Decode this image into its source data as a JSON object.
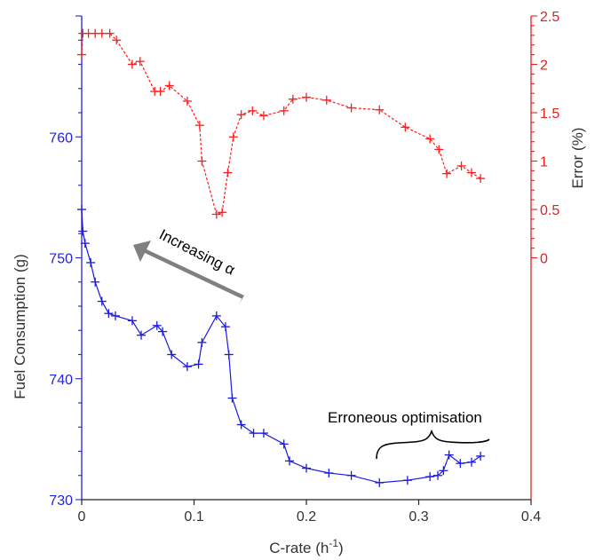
{
  "chart_data": {
    "type": "line",
    "xlabel": "C-rate (h",
    "xlabel_sup": "-1",
    "xlabel_end": ")",
    "ylabel_left": "Fuel Consumption (g)",
    "ylabel_right": "Error (%)",
    "xlim": [
      0,
      0.4
    ],
    "ylim_left": [
      730,
      770
    ],
    "ylim_right": [
      -2.5,
      2.5
    ],
    "x_ticks": [
      "0",
      "0.1",
      "0.2",
      "0.3",
      "0.4"
    ],
    "y_left_ticks": [
      "730",
      "740",
      "750",
      "760"
    ],
    "y_right_ticks": [
      "0",
      "0.5",
      "1",
      "1.5",
      "2",
      "2.5"
    ],
    "grid": false,
    "colors": {
      "left_axis": "#2424d8",
      "right_axis": "#e02020",
      "arrow": "#808080",
      "brace": "#000000"
    },
    "annotations": {
      "arrow_text": "Increasing α",
      "brace_text": "Erroneous optimisation"
    },
    "series": [
      {
        "axis": "left",
        "color": "#1a1ae6",
        "style": "solid",
        "x": [
          0.0,
          0.001,
          0.003,
          0.008,
          0.012,
          0.018,
          0.024,
          0.03,
          0.045,
          0.053,
          0.067,
          0.072,
          0.08,
          0.094,
          0.104,
          0.107,
          0.12,
          0.128,
          0.131,
          0.134,
          0.142,
          0.153,
          0.162,
          0.18,
          0.185,
          0.2,
          0.22,
          0.24,
          0.265,
          0.29,
          0.31,
          0.317,
          0.322,
          0.327,
          0.337,
          0.347,
          0.355
        ],
        "y": [
          754.0,
          752.2,
          751.2,
          749.6,
          748.0,
          746.4,
          745.4,
          745.2,
          744.8,
          743.6,
          744.4,
          743.9,
          742.0,
          741.0,
          741.2,
          743.0,
          745.2,
          744.3,
          742.0,
          738.4,
          736.2,
          735.5,
          735.5,
          734.6,
          733.2,
          732.6,
          732.2,
          732.0,
          731.4,
          731.6,
          731.9,
          732.0,
          732.4,
          733.7,
          733.0,
          733.1,
          733.6
        ]
      },
      {
        "axis": "right",
        "color": "#ff1c1c",
        "style": "dashed",
        "x": [
          0.0,
          0.001,
          0.006,
          0.012,
          0.018,
          0.025,
          0.031,
          0.045,
          0.052,
          0.065,
          0.07,
          0.078,
          0.094,
          0.105,
          0.107,
          0.12,
          0.125,
          0.13,
          0.135,
          0.142,
          0.152,
          0.162,
          0.18,
          0.188,
          0.2,
          0.218,
          0.24,
          0.265,
          0.288,
          0.31,
          0.318,
          0.325,
          0.338,
          0.347,
          0.355
        ],
        "y": [
          2.1,
          2.32,
          2.32,
          2.32,
          2.32,
          2.32,
          2.25,
          2.0,
          2.03,
          1.72,
          1.72,
          1.78,
          1.62,
          1.37,
          1.0,
          0.45,
          0.47,
          0.88,
          1.25,
          1.48,
          1.52,
          1.47,
          1.52,
          1.64,
          1.66,
          1.63,
          1.55,
          1.53,
          1.35,
          1.23,
          1.12,
          0.87,
          0.95,
          0.88,
          0.82
        ]
      }
    ]
  }
}
